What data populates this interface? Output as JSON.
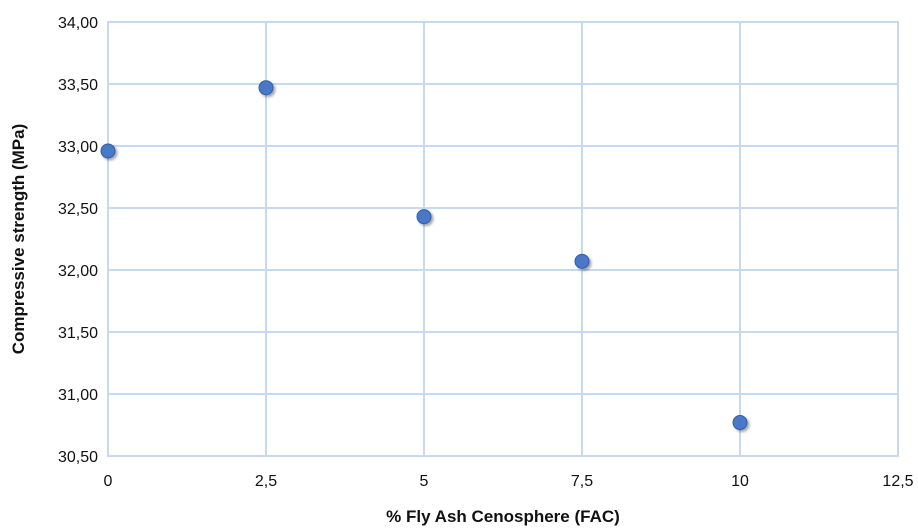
{
  "chart_data": {
    "type": "scatter",
    "xlabel": "% Fly Ash Cenosphere (FAC)",
    "ylabel": "Compressive strength (MPa)",
    "xlim": [
      0,
      12.5
    ],
    "ylim": [
      30.5,
      34.0
    ],
    "xticks": [
      0,
      2.5,
      5,
      7.5,
      10,
      12.5
    ],
    "xtick_labels": [
      "0",
      "2,5",
      "5",
      "7,5",
      "10",
      "12,5"
    ],
    "yticks": [
      30.5,
      31.0,
      31.5,
      32.0,
      32.5,
      33.0,
      33.5,
      34.0
    ],
    "ytick_labels": [
      "30,50",
      "31,00",
      "31,50",
      "32,00",
      "32,50",
      "33,00",
      "33,50",
      "34,00"
    ],
    "grid": true,
    "series": [
      {
        "x": [
          0,
          2.5,
          5,
          7.5,
          10
        ],
        "y": [
          32.96,
          33.47,
          32.43,
          32.07,
          30.77
        ],
        "color": "#4a78c9"
      }
    ]
  }
}
